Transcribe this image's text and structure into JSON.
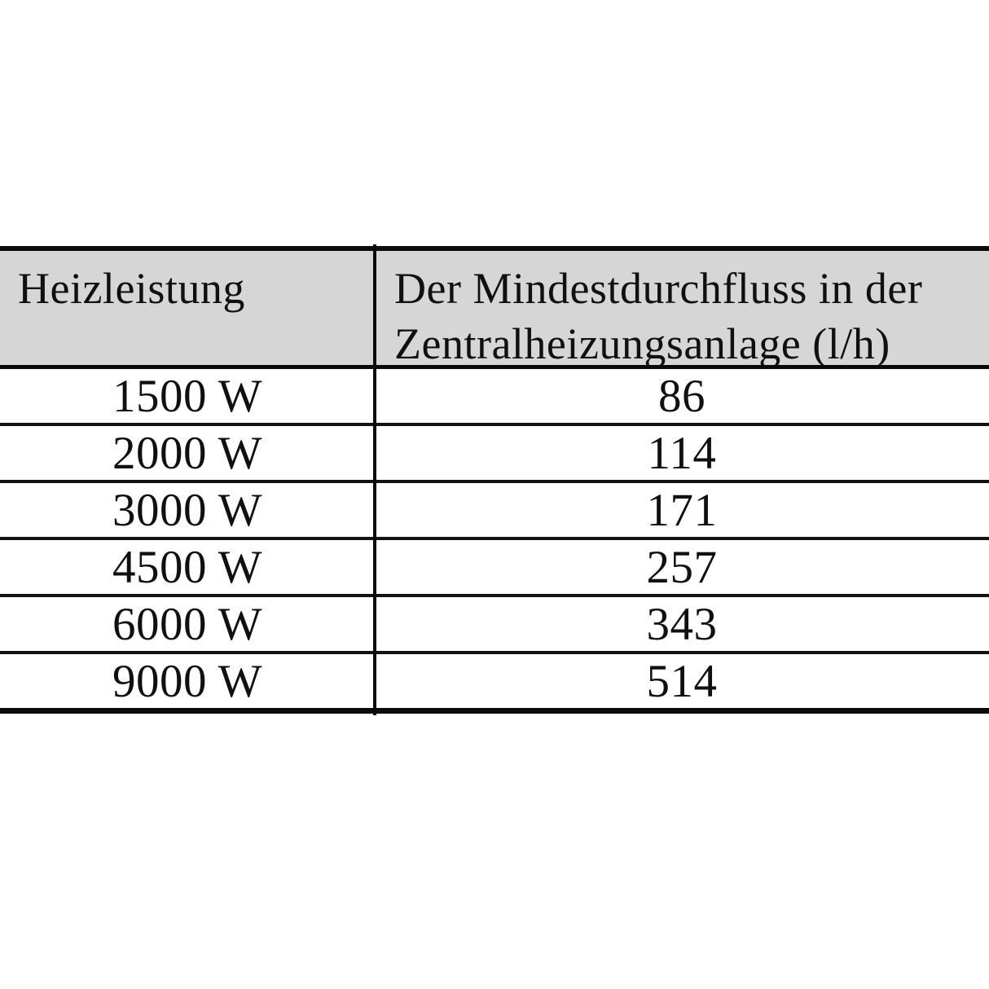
{
  "table": {
    "header": {
      "col1": "Heizleistung",
      "col2_line1": "Der Mindestdurchfluss in der",
      "col2_line2": "Zentralheizungsanlage (l/h)"
    },
    "rows": [
      {
        "heizleistung": "1500 W",
        "mindestdurchfluss": "86"
      },
      {
        "heizleistung": "2000 W",
        "mindestdurchfluss": "114"
      },
      {
        "heizleistung": "3000 W",
        "mindestdurchfluss": "171"
      },
      {
        "heizleistung": "4500 W",
        "mindestdurchfluss": "257"
      },
      {
        "heizleistung": "6000 W",
        "mindestdurchfluss": "343"
      },
      {
        "heizleistung": "9000 W",
        "mindestdurchfluss": "514"
      }
    ],
    "colors": {
      "header_background": "#d5d6d5",
      "border": "#0b0b0b",
      "text": "#101010"
    }
  }
}
